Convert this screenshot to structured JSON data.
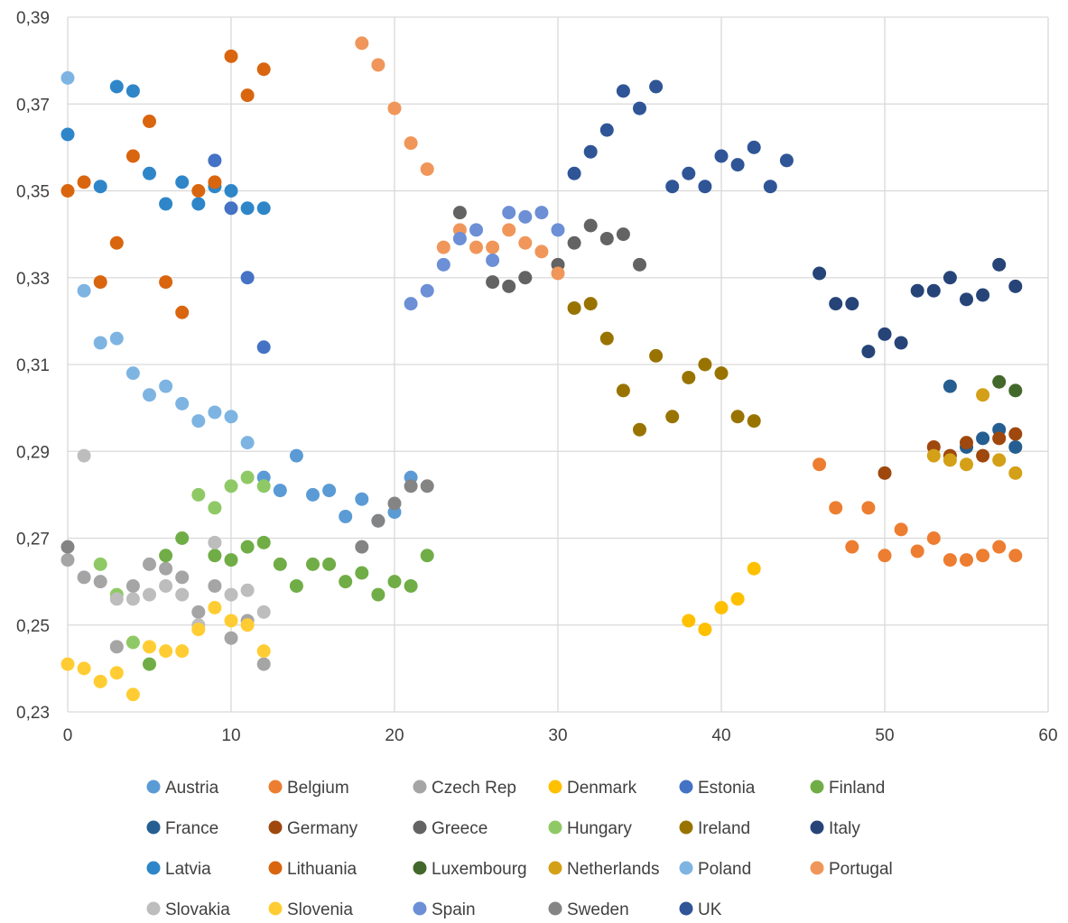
{
  "chart_data": {
    "type": "scatter",
    "title": "",
    "xlabel": "",
    "ylabel": "",
    "xlim": [
      0,
      60
    ],
    "ylim": [
      0.23,
      0.39
    ],
    "x_ticks": [
      0,
      10,
      20,
      30,
      40,
      50,
      60
    ],
    "x_tick_labels": [
      "0",
      "10",
      "20",
      "30",
      "40",
      "50",
      "60"
    ],
    "y_ticks": [
      0.23,
      0.25,
      0.27,
      0.29,
      0.31,
      0.33,
      0.35,
      0.37,
      0.39
    ],
    "y_tick_labels": [
      "0,23",
      "0,25",
      "0,27",
      "0,29",
      "0,31",
      "0,33",
      "0,35",
      "0,37",
      "0,39"
    ],
    "grid": "vertical and horizontal major gridlines",
    "legend_position": "bottom",
    "series": [
      {
        "name": "Austria",
        "color": "#5B9BD5",
        "points": [
          [
            12,
            0.284
          ],
          [
            13,
            0.281
          ],
          [
            14,
            0.289
          ],
          [
            15,
            0.28
          ],
          [
            16,
            0.281
          ],
          [
            17,
            0.275
          ],
          [
            18,
            0.279
          ],
          [
            19,
            0.274
          ],
          [
            20,
            0.276
          ],
          [
            21,
            0.284
          ]
        ]
      },
      {
        "name": "Belgium",
        "color": "#ED7D31",
        "points": [
          [
            46,
            0.287
          ],
          [
            47,
            0.277
          ],
          [
            48,
            0.268
          ],
          [
            49,
            0.277
          ],
          [
            50,
            0.266
          ],
          [
            51,
            0.272
          ],
          [
            52,
            0.267
          ],
          [
            53,
            0.27
          ],
          [
            54,
            0.265
          ],
          [
            55,
            0.265
          ],
          [
            56,
            0.266
          ],
          [
            57,
            0.268
          ],
          [
            58,
            0.266
          ]
        ]
      },
      {
        "name": "Czech Rep",
        "color": "#A5A5A5",
        "points": [
          [
            0,
            0.265
          ],
          [
            1,
            0.261
          ],
          [
            2,
            0.26
          ],
          [
            3,
            0.245
          ],
          [
            4,
            0.259
          ],
          [
            5,
            0.264
          ],
          [
            6,
            0.263
          ],
          [
            7,
            0.261
          ],
          [
            8,
            0.253
          ],
          [
            9,
            0.259
          ],
          [
            10,
            0.247
          ],
          [
            11,
            0.251
          ],
          [
            12,
            0.241
          ]
        ]
      },
      {
        "name": "Denmark",
        "color": "#FFC000",
        "points": [
          [
            38,
            0.251
          ],
          [
            39,
            0.249
          ],
          [
            40,
            0.254
          ],
          [
            41,
            0.256
          ],
          [
            42,
            0.263
          ]
        ]
      },
      {
        "name": "Estonia",
        "color": "#4472C4",
        "points": [
          [
            9,
            0.357
          ],
          [
            10,
            0.346
          ],
          [
            11,
            0.33
          ],
          [
            12,
            0.314
          ]
        ]
      },
      {
        "name": "Finland",
        "color": "#70AD47",
        "points": [
          [
            5,
            0.241
          ],
          [
            6,
            0.266
          ],
          [
            7,
            0.27
          ],
          [
            9,
            0.266
          ],
          [
            10,
            0.265
          ],
          [
            11,
            0.268
          ],
          [
            12,
            0.269
          ],
          [
            13,
            0.264
          ],
          [
            14,
            0.259
          ],
          [
            15,
            0.264
          ],
          [
            16,
            0.264
          ],
          [
            17,
            0.26
          ],
          [
            18,
            0.262
          ],
          [
            19,
            0.257
          ],
          [
            20,
            0.26
          ],
          [
            21,
            0.259
          ],
          [
            22,
            0.266
          ]
        ]
      },
      {
        "name": "France",
        "color": "#255E91",
        "points": [
          [
            54,
            0.305
          ],
          [
            55,
            0.291
          ],
          [
            56,
            0.293
          ],
          [
            57,
            0.295
          ],
          [
            58,
            0.291
          ]
        ]
      },
      {
        "name": "Germany",
        "color": "#9E480E",
        "points": [
          [
            50,
            0.285
          ],
          [
            53,
            0.291
          ],
          [
            54,
            0.289
          ],
          [
            55,
            0.292
          ],
          [
            56,
            0.289
          ],
          [
            57,
            0.293
          ],
          [
            58,
            0.294
          ]
        ]
      },
      {
        "name": "Greece",
        "color": "#636363",
        "points": [
          [
            24,
            0.345
          ],
          [
            26,
            0.329
          ],
          [
            27,
            0.328
          ],
          [
            28,
            0.33
          ],
          [
            30,
            0.333
          ],
          [
            31,
            0.338
          ],
          [
            32,
            0.342
          ],
          [
            33,
            0.339
          ],
          [
            34,
            0.34
          ],
          [
            35,
            0.333
          ]
        ]
      },
      {
        "name": "Hungary",
        "color": "#8FC965",
        "points": [
          [
            2,
            0.264
          ],
          [
            3,
            0.257
          ],
          [
            4,
            0.246
          ],
          [
            8,
            0.28
          ],
          [
            9,
            0.277
          ],
          [
            10,
            0.282
          ],
          [
            11,
            0.284
          ],
          [
            12,
            0.282
          ]
        ]
      },
      {
        "name": "Ireland",
        "color": "#997300",
        "points": [
          [
            31,
            0.323
          ],
          [
            32,
            0.324
          ],
          [
            33,
            0.316
          ],
          [
            34,
            0.304
          ],
          [
            35,
            0.295
          ],
          [
            36,
            0.312
          ],
          [
            37,
            0.298
          ],
          [
            38,
            0.307
          ],
          [
            39,
            0.31
          ],
          [
            40,
            0.308
          ],
          [
            41,
            0.298
          ],
          [
            42,
            0.297
          ]
        ]
      },
      {
        "name": "Italy",
        "color": "#264478",
        "points": [
          [
            46,
            0.331
          ],
          [
            47,
            0.324
          ],
          [
            48,
            0.324
          ],
          [
            49,
            0.313
          ],
          [
            50,
            0.317
          ],
          [
            51,
            0.315
          ],
          [
            52,
            0.327
          ],
          [
            53,
            0.327
          ],
          [
            54,
            0.33
          ],
          [
            55,
            0.325
          ],
          [
            56,
            0.326
          ],
          [
            57,
            0.333
          ],
          [
            58,
            0.328
          ]
        ]
      },
      {
        "name": "Latvia",
        "color": "#2E86C9",
        "points": [
          [
            0,
            0.363
          ],
          [
            2,
            0.351
          ],
          [
            3,
            0.374
          ],
          [
            4,
            0.373
          ],
          [
            5,
            0.354
          ],
          [
            6,
            0.347
          ],
          [
            7,
            0.352
          ],
          [
            8,
            0.347
          ],
          [
            9,
            0.351
          ],
          [
            10,
            0.35
          ],
          [
            11,
            0.346
          ],
          [
            12,
            0.346
          ]
        ]
      },
      {
        "name": "Lithuania",
        "color": "#D9650F",
        "points": [
          [
            0,
            0.35
          ],
          [
            1,
            0.352
          ],
          [
            2,
            0.329
          ],
          [
            3,
            0.338
          ],
          [
            4,
            0.358
          ],
          [
            5,
            0.366
          ],
          [
            6,
            0.329
          ],
          [
            7,
            0.322
          ],
          [
            8,
            0.35
          ],
          [
            9,
            0.352
          ],
          [
            10,
            0.381
          ],
          [
            11,
            0.372
          ],
          [
            12,
            0.378
          ]
        ]
      },
      {
        "name": "Luxembourg",
        "color": "#43682B",
        "points": [
          [
            57,
            0.306
          ],
          [
            58,
            0.304
          ]
        ]
      },
      {
        "name": "Netherlands",
        "color": "#D4A017",
        "points": [
          [
            53,
            0.289
          ],
          [
            54,
            0.288
          ],
          [
            55,
            0.287
          ],
          [
            56,
            0.303
          ],
          [
            57,
            0.288
          ],
          [
            58,
            0.285
          ]
        ]
      },
      {
        "name": "Poland",
        "color": "#7EB4E2",
        "points": [
          [
            0,
            0.376
          ],
          [
            1,
            0.327
          ],
          [
            2,
            0.315
          ],
          [
            3,
            0.316
          ],
          [
            4,
            0.308
          ],
          [
            5,
            0.303
          ],
          [
            6,
            0.305
          ],
          [
            7,
            0.301
          ],
          [
            8,
            0.297
          ],
          [
            9,
            0.299
          ],
          [
            10,
            0.298
          ],
          [
            11,
            0.292
          ]
        ]
      },
      {
        "name": "Portugal",
        "color": "#F0965A",
        "points": [
          [
            18,
            0.384
          ],
          [
            19,
            0.379
          ],
          [
            20,
            0.369
          ],
          [
            21,
            0.361
          ],
          [
            22,
            0.355
          ],
          [
            23,
            0.337
          ],
          [
            24,
            0.341
          ],
          [
            25,
            0.337
          ],
          [
            26,
            0.337
          ],
          [
            27,
            0.341
          ],
          [
            28,
            0.338
          ],
          [
            29,
            0.336
          ],
          [
            30,
            0.331
          ]
        ]
      },
      {
        "name": "Slovakia",
        "color": "#BDBDBD",
        "points": [
          [
            1,
            0.289
          ],
          [
            3,
            0.256
          ],
          [
            4,
            0.256
          ],
          [
            5,
            0.257
          ],
          [
            6,
            0.259
          ],
          [
            7,
            0.257
          ],
          [
            8,
            0.25
          ],
          [
            9,
            0.269
          ],
          [
            10,
            0.257
          ],
          [
            11,
            0.258
          ],
          [
            12,
            0.253
          ]
        ]
      },
      {
        "name": "Slovenia",
        "color": "#FFCD33",
        "points": [
          [
            0,
            0.241
          ],
          [
            1,
            0.24
          ],
          [
            2,
            0.237
          ],
          [
            3,
            0.239
          ],
          [
            4,
            0.234
          ],
          [
            5,
            0.245
          ],
          [
            6,
            0.244
          ],
          [
            7,
            0.244
          ],
          [
            8,
            0.249
          ],
          [
            9,
            0.254
          ],
          [
            10,
            0.251
          ],
          [
            11,
            0.25
          ],
          [
            12,
            0.244
          ]
        ]
      },
      {
        "name": "Spain",
        "color": "#6C8FD6",
        "points": [
          [
            21,
            0.324
          ],
          [
            22,
            0.327
          ],
          [
            23,
            0.333
          ],
          [
            24,
            0.339
          ],
          [
            25,
            0.341
          ],
          [
            26,
            0.334
          ],
          [
            27,
            0.345
          ],
          [
            28,
            0.344
          ],
          [
            29,
            0.345
          ],
          [
            30,
            0.341
          ]
        ]
      },
      {
        "name": "Sweden",
        "color": "#848484",
        "points": [
          [
            0,
            0.268
          ],
          [
            18,
            0.268
          ],
          [
            19,
            0.274
          ],
          [
            20,
            0.278
          ],
          [
            21,
            0.282
          ],
          [
            22,
            0.282
          ]
        ]
      },
      {
        "name": "UK",
        "color": "#2F5597",
        "points": [
          [
            31,
            0.354
          ],
          [
            32,
            0.359
          ],
          [
            33,
            0.364
          ],
          [
            34,
            0.373
          ],
          [
            35,
            0.369
          ],
          [
            36,
            0.374
          ],
          [
            37,
            0.351
          ],
          [
            38,
            0.354
          ],
          [
            39,
            0.351
          ],
          [
            40,
            0.358
          ],
          [
            41,
            0.356
          ],
          [
            42,
            0.36
          ],
          [
            43,
            0.351
          ],
          [
            44,
            0.357
          ]
        ]
      }
    ]
  }
}
